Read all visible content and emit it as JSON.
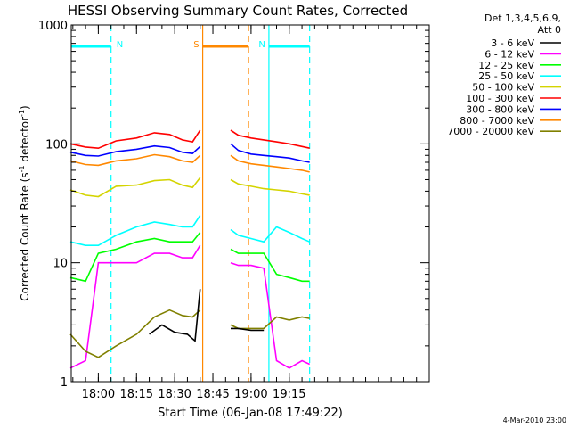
{
  "chart_data": {
    "type": "line",
    "title": "HESSI Observing Summary Count Rates, Corrected",
    "xlabel": "Start Time (06-Jan-08 17:49:22)",
    "ylabel_prefix": "Corrected Count Rate (s",
    "ylabel_sup1": "-1",
    "ylabel_mid": " detector",
    "ylabel_sup2": "-1",
    "ylabel_suffix": ")",
    "date_stamp": "4-Mar-2010 23:00",
    "y_scale": "log",
    "ylim": [
      1,
      1000
    ],
    "xlim": [
      "17:49:22",
      "20:10:00"
    ],
    "x_ticks": [
      "18:00",
      "18:15",
      "18:30",
      "18:45",
      "19:00",
      "19:15"
    ],
    "y_ticks": [
      "1",
      "10",
      "100",
      "1000"
    ],
    "legend": {
      "placement": "right",
      "header_line1": "Det 1,3,4,5,6,9,",
      "header_line2": "Att 0",
      "entries": [
        {
          "label": "3 - 6 keV",
          "color": "#000000"
        },
        {
          "label": "6 - 12 keV",
          "color": "#ff00ff"
        },
        {
          "label": "12 - 25 keV",
          "color": "#00ff00"
        },
        {
          "label": "25 - 50 keV",
          "color": "#00ffff"
        },
        {
          "label": "50 - 100 keV",
          "color": "#d4d400"
        },
        {
          "label": "100 - 300 keV",
          "color": "#ff0000"
        },
        {
          "label": "300 - 800 keV",
          "color": "#0000ff"
        },
        {
          "label": "800 - 7000 keV",
          "color": "#ff8800"
        },
        {
          "label": "7000 - 20000 keV",
          "color": "#808000"
        }
      ]
    },
    "flags": [
      {
        "label": "N",
        "color": "#00ffff",
        "start": "17:49",
        "end": "18:05",
        "level": 660
      },
      {
        "label": "N",
        "color": "#00ffff",
        "start": "19:07",
        "end": "19:23",
        "level": 660
      },
      {
        "label": "S",
        "color": "#ff8800",
        "start": "18:41",
        "end": "18:59",
        "level": 660
      }
    ],
    "intervals": [
      {
        "color": "#00ffff",
        "time": "18:05",
        "style": "dashed"
      },
      {
        "color": "#ff8800",
        "time": "18:41",
        "style": "solid"
      },
      {
        "color": "#ff8800",
        "time": "18:59",
        "style": "dashed"
      },
      {
        "color": "#00ffff",
        "time": "19:07",
        "style": "solid"
      },
      {
        "color": "#00ffff",
        "time": "19:23",
        "style": "dashed"
      }
    ],
    "series": [
      {
        "name": "100 - 300 keV",
        "color": "#ff0000",
        "segments": [
          {
            "x": [
              "17:49",
              "17:55",
              "18:00",
              "18:07",
              "18:15",
              "18:22",
              "18:28",
              "18:33",
              "18:37",
              "18:40"
            ],
            "y": [
              100,
              94,
              92,
              106,
              112,
              124,
              120,
              108,
              104,
              130
            ]
          },
          {
            "x": [
              "18:52",
              "18:55",
              "19:00",
              "19:05",
              "19:10",
              "19:15",
              "19:20",
              "19:23"
            ],
            "y": [
              130,
              118,
              112,
              108,
              104,
              100,
              95,
              92
            ]
          }
        ]
      },
      {
        "name": "300 - 800 keV",
        "color": "#0000ff",
        "segments": [
          {
            "x": [
              "17:49",
              "17:55",
              "18:00",
              "18:07",
              "18:15",
              "18:22",
              "18:28",
              "18:33",
              "18:37",
              "18:40"
            ],
            "y": [
              85,
              80,
              79,
              86,
              90,
              96,
              93,
              85,
              83,
              95
            ]
          },
          {
            "x": [
              "18:52",
              "18:55",
              "19:00",
              "19:05",
              "19:10",
              "19:15",
              "19:20",
              "19:23"
            ],
            "y": [
              100,
              88,
              82,
              80,
              78,
              76,
              72,
              70
            ]
          }
        ]
      },
      {
        "name": "800 - 7000 keV",
        "color": "#ff8800",
        "segments": [
          {
            "x": [
              "17:49",
              "17:55",
              "18:00",
              "18:07",
              "18:15",
              "18:22",
              "18:28",
              "18:33",
              "18:37",
              "18:40"
            ],
            "y": [
              72,
              67,
              66,
              72,
              75,
              81,
              78,
              72,
              70,
              80
            ]
          },
          {
            "x": [
              "18:52",
              "18:55",
              "19:00",
              "19:05",
              "19:10",
              "19:15",
              "19:20",
              "19:23"
            ],
            "y": [
              80,
              72,
              68,
              66,
              64,
              62,
              60,
              58
            ]
          }
        ]
      },
      {
        "name": "50 - 100 keV",
        "color": "#d4d400",
        "segments": [
          {
            "x": [
              "17:49",
              "17:55",
              "18:00",
              "18:07",
              "18:15",
              "18:22",
              "18:28",
              "18:33",
              "18:37",
              "18:40"
            ],
            "y": [
              41,
              37,
              36,
              44,
              45,
              49,
              50,
              45,
              43,
              52
            ]
          },
          {
            "x": [
              "18:52",
              "18:55",
              "19:00",
              "19:05",
              "19:10",
              "19:15",
              "19:20",
              "19:23"
            ],
            "y": [
              50,
              46,
              44,
              42,
              41,
              40,
              38,
              37
            ]
          }
        ]
      },
      {
        "name": "25 - 50 keV",
        "color": "#00ffff",
        "segments": [
          {
            "x": [
              "17:49",
              "17:55",
              "18:00",
              "18:07",
              "18:15",
              "18:22",
              "18:28",
              "18:33",
              "18:37",
              "18:40"
            ],
            "y": [
              15,
              14,
              14,
              17,
              20,
              22,
              21,
              20,
              20,
              25
            ]
          },
          {
            "x": [
              "18:52",
              "18:55",
              "19:00",
              "19:05",
              "19:10",
              "19:15",
              "19:20",
              "19:23"
            ],
            "y": [
              19,
              17,
              16,
              15,
              20,
              18,
              16,
              15
            ]
          }
        ]
      },
      {
        "name": "12 - 25 keV",
        "color": "#00ff00",
        "segments": [
          {
            "x": [
              "17:49",
              "17:55",
              "18:00",
              "18:07",
              "18:15",
              "18:22",
              "18:28",
              "18:33",
              "18:37",
              "18:40"
            ],
            "y": [
              7.5,
              7.0,
              12,
              13,
              15,
              16,
              15,
              15,
              15,
              18
            ]
          },
          {
            "x": [
              "18:52",
              "18:55",
              "19:00",
              "19:05",
              "19:10",
              "19:15",
              "19:20",
              "19:23"
            ],
            "y": [
              13,
              12,
              12,
              12,
              8,
              7.5,
              7,
              7
            ]
          }
        ]
      },
      {
        "name": "6 - 12 keV",
        "color": "#ff00ff",
        "segments": [
          {
            "x": [
              "17:49",
              "17:55",
              "18:00",
              "18:07",
              "18:15",
              "18:22",
              "18:28",
              "18:33",
              "18:37",
              "18:40"
            ],
            "y": [
              1.3,
              1.5,
              10,
              10,
              10,
              12,
              12,
              11,
              11,
              14
            ]
          },
          {
            "x": [
              "18:52",
              "18:55",
              "19:00",
              "19:05",
              "19:10",
              "19:15",
              "19:20",
              "19:23"
            ],
            "y": [
              10,
              9.5,
              9.5,
              9,
              1.5,
              1.3,
              1.5,
              1.4
            ]
          }
        ]
      },
      {
        "name": "7000 - 20000 keV",
        "color": "#808000",
        "segments": [
          {
            "x": [
              "17:49",
              "17:55",
              "18:00",
              "18:07",
              "18:15",
              "18:22",
              "18:28",
              "18:33",
              "18:37",
              "18:40"
            ],
            "y": [
              2.5,
              1.8,
              1.6,
              2.0,
              2.5,
              3.5,
              4.0,
              3.6,
              3.5,
              4.0
            ]
          },
          {
            "x": [
              "18:52",
              "18:55",
              "19:00",
              "19:05",
              "19:10",
              "19:15",
              "19:20",
              "19:23"
            ],
            "y": [
              3.0,
              2.8,
              2.8,
              2.8,
              3.5,
              3.3,
              3.5,
              3.4
            ]
          }
        ]
      },
      {
        "name": "3 - 6 keV",
        "color": "#000000",
        "segments": [
          {
            "x": [
              "18:20",
              "18:25",
              "18:30",
              "18:35",
              "18:38",
              "18:40"
            ],
            "y": [
              2.5,
              3.0,
              2.6,
              2.5,
              2.2,
              6
            ]
          },
          {
            "x": [
              "18:52",
              "18:55",
              "19:00",
              "19:05"
            ],
            "y": [
              2.8,
              2.8,
              2.7,
              2.7
            ]
          }
        ]
      }
    ]
  }
}
